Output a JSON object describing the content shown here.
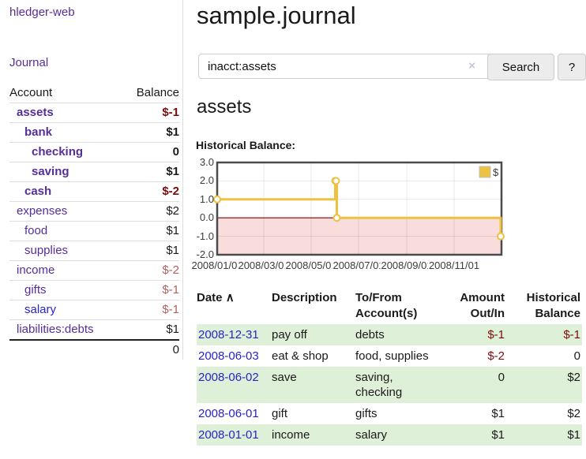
{
  "app": {
    "title": "hledger-web"
  },
  "sidebar": {
    "journal_link": "Journal",
    "table": {
      "headers": {
        "account": "Account",
        "balance": "Balance"
      },
      "rows": [
        {
          "name": "assets",
          "balance": "$-1"
        },
        {
          "name": "bank",
          "balance": "$1"
        },
        {
          "name": "checking",
          "balance": "0"
        },
        {
          "name": "saving",
          "balance": "$1"
        },
        {
          "name": "cash",
          "balance": "$-2"
        },
        {
          "name": "expenses",
          "balance": "$2"
        },
        {
          "name": "food",
          "balance": "$1"
        },
        {
          "name": "supplies",
          "balance": "$1"
        },
        {
          "name": "income",
          "balance": "$-2"
        },
        {
          "name": "gifts",
          "balance": "$-1"
        },
        {
          "name": "salary",
          "balance": "$-1"
        },
        {
          "name": "liabilities:debts",
          "balance": "$1"
        }
      ],
      "total": "0"
    }
  },
  "header": {
    "title": "sample.journal"
  },
  "search": {
    "value": "inacct:assets",
    "clear_icon": "×",
    "button": "Search",
    "help_button": "?"
  },
  "account_page": {
    "title": "assets",
    "chart_label": "Historical Balance:"
  },
  "chart_data": {
    "type": "line",
    "step": true,
    "title": "Historical Balance:",
    "x_range": [
      "2008-01-01",
      "2009-01-01"
    ],
    "x_ticks": [
      {
        "date": "2008-01-01",
        "label": "2008/01/01"
      },
      {
        "date": "2008-03-01",
        "label": "2008/03/01"
      },
      {
        "date": "2008-05-01",
        "label": "2008/05/01"
      },
      {
        "date": "2008-07-01",
        "label": "2008/07/01"
      },
      {
        "date": "2008-09-01",
        "label": "2008/09/01"
      },
      {
        "date": "2008-11-01",
        "label": "2008/11/01"
      }
    ],
    "y_ticks": [
      {
        "value": 3,
        "label": "3.0"
      },
      {
        "value": 2,
        "label": "2.0"
      },
      {
        "value": 1,
        "label": "1.0"
      },
      {
        "value": 0,
        "label": "0.0"
      },
      {
        "value": -1,
        "label": "-1.0"
      },
      {
        "value": -2,
        "label": "-2.0"
      }
    ],
    "ylim": [
      -2,
      3
    ],
    "series": [
      {
        "name": "$",
        "color": "#edc240",
        "points": [
          [
            "2008-01-01",
            1
          ],
          [
            "2008-06-01",
            2
          ],
          [
            "2008-06-02",
            2
          ],
          [
            "2008-06-03",
            0
          ],
          [
            "2008-12-31",
            -1
          ]
        ]
      }
    ],
    "legend": {
      "label": "$",
      "position": "top-right"
    },
    "colors": {
      "negative_region": "#f9dcdc",
      "zero_line": "#7a0000",
      "grid": "rgba(0,0,0,0.09)",
      "border": "#4a4a4a"
    }
  },
  "register": {
    "headers": {
      "date": "Date",
      "sort_icon": "∧",
      "description": "Description",
      "accounts": "To/From Account(s)",
      "amount": "Amount Out/In",
      "balance": "Historical Balance"
    },
    "rows": [
      {
        "date": "2008-12-31",
        "description": "pay off",
        "accounts": "debts",
        "amount": "$-1",
        "balance": "$-1"
      },
      {
        "date": "2008-06-03",
        "description": "eat & shop",
        "accounts": "food, supplies",
        "amount": "$-2",
        "balance": "0"
      },
      {
        "date": "2008-06-02",
        "description": "save",
        "accounts": "saving, checking",
        "amount": "0",
        "balance": "$2"
      },
      {
        "date": "2008-06-01",
        "description": "gift",
        "accounts": "gifts",
        "amount": "$1",
        "balance": "$2"
      },
      {
        "date": "2008-01-01",
        "description": "income",
        "accounts": "salary",
        "amount": "$1",
        "balance": "$1"
      }
    ]
  }
}
